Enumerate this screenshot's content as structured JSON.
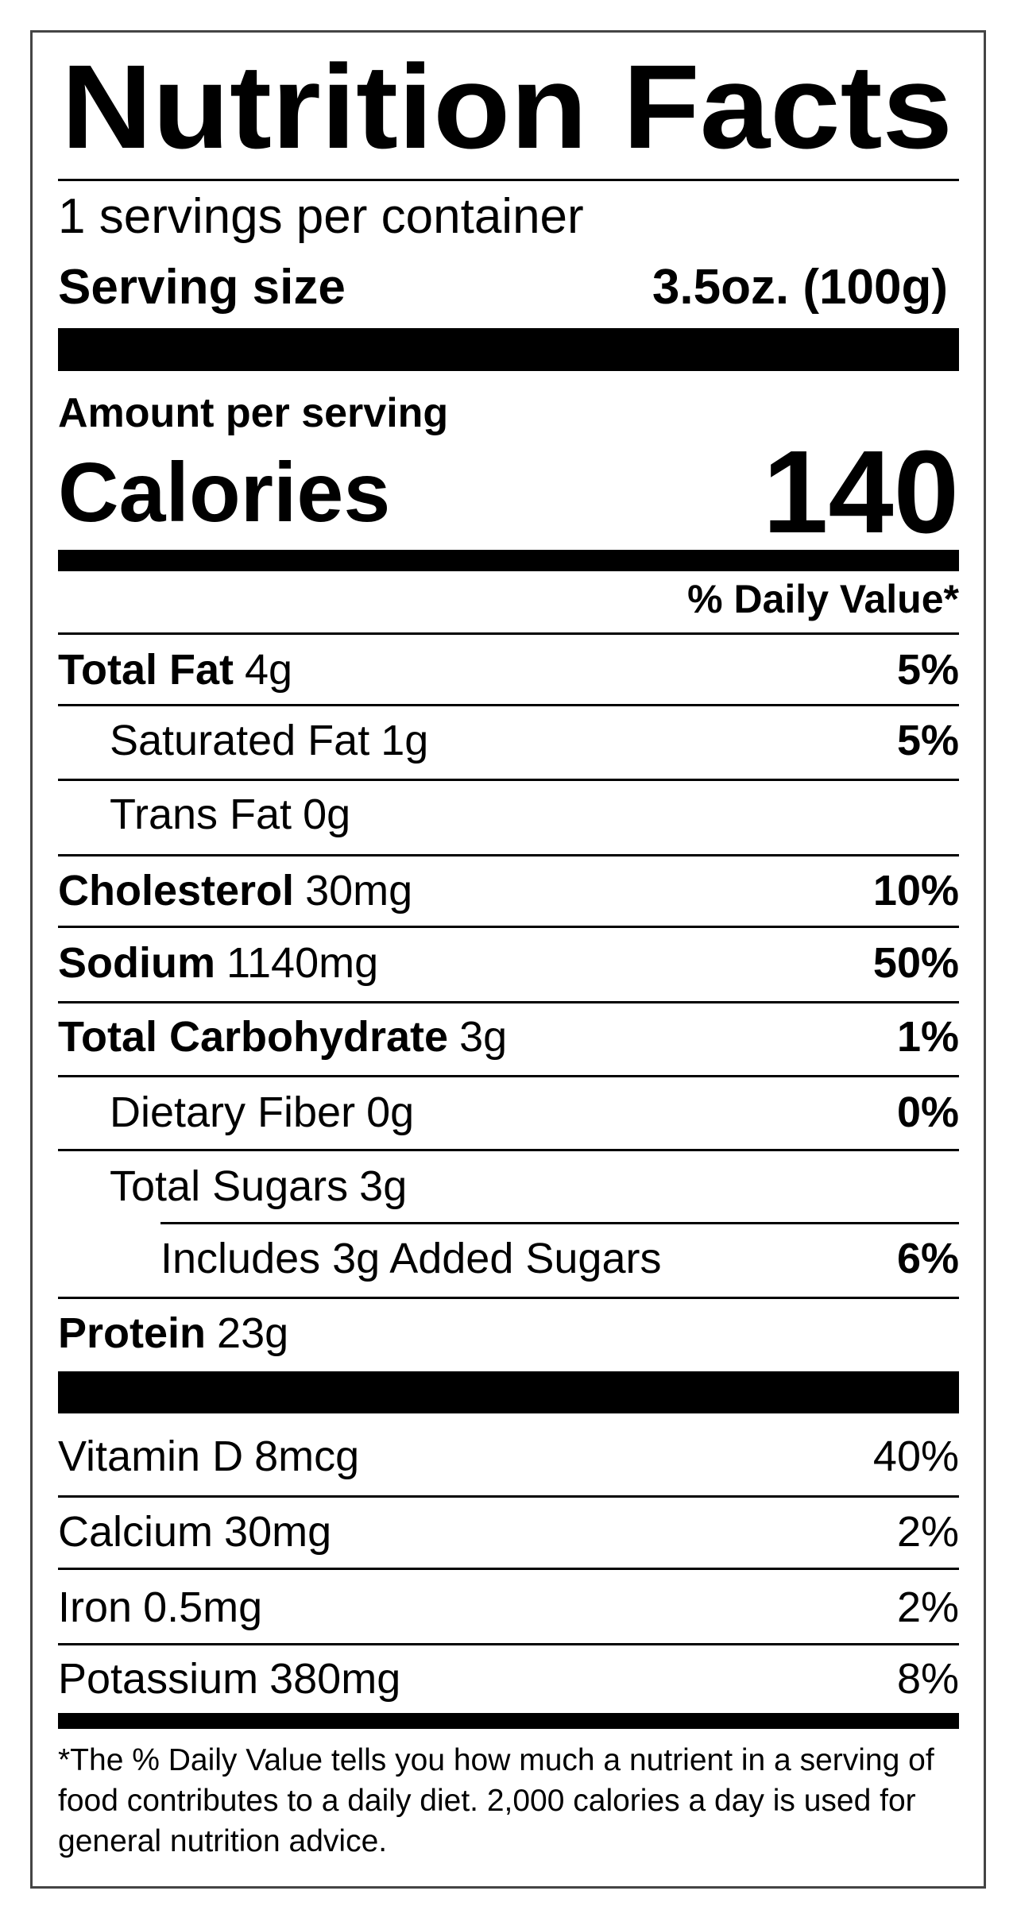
{
  "header": {
    "title": "Nutrition Facts",
    "servings": "1 servings per container"
  },
  "serving_size": {
    "label": "Serving size",
    "value": "3.5oz. (100g)"
  },
  "amount_label": "Amount per serving",
  "calories": {
    "label": "Calories",
    "value": "140"
  },
  "daily_value_header": "% Daily Value*",
  "nutrients": [
    {
      "name": "Total Fat",
      "amount": "4g",
      "dv": "5%"
    },
    {
      "name": "Saturated Fat",
      "amount": "1g",
      "dv": "5%"
    },
    {
      "name": "Trans Fat",
      "amount": "0g"
    },
    {
      "name": "Cholesterol",
      "amount": "30mg",
      "dv": "10%"
    },
    {
      "name": "Sodium",
      "amount": "1140mg",
      "dv": "50%"
    },
    {
      "name": "Total Carbohydrate",
      "amount": "3g",
      "dv": "1%"
    },
    {
      "name": "Dietary Fiber",
      "amount": "0g",
      "dv": "0%"
    },
    {
      "name": "Total Sugars",
      "amount": "3g"
    },
    {
      "name": "Includes 3g Added Sugars",
      "dv": "6%"
    },
    {
      "name": "Protein",
      "amount": "23g"
    }
  ],
  "vitamins": [
    {
      "name": "Vitamin D",
      "amount": "8mcg",
      "dv": "40%"
    },
    {
      "name": "Calcium",
      "amount": "30mg",
      "dv": "2%"
    },
    {
      "name": "Iron",
      "amount": "0.5mg",
      "dv": "2%"
    },
    {
      "name": "Potassium",
      "amount": "380mg",
      "dv": "8%"
    }
  ],
  "footnote": "*The % Daily Value tells you how much a nutrient in a serving of food contributes to a daily diet. 2,000 calories a day is used for general nutrition advice."
}
